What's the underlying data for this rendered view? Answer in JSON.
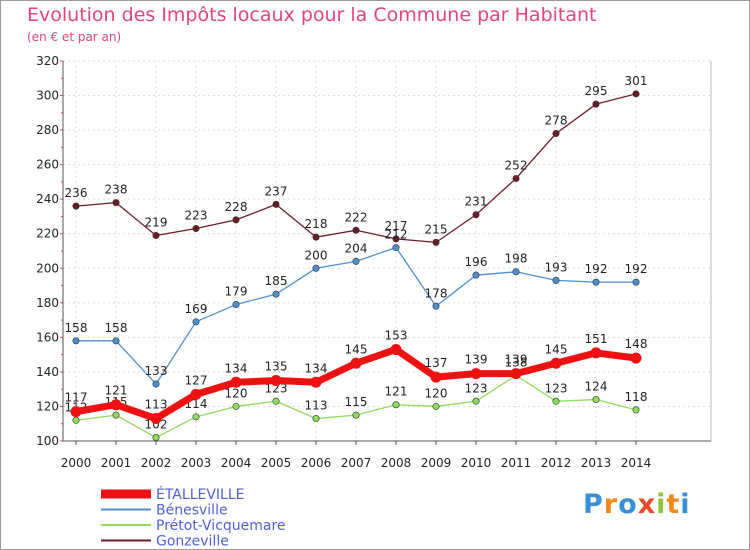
{
  "title": "Evolution des Impôts locaux pour la Commune par Habitant",
  "subtitle": "(en € et par an)",
  "logo": {
    "text": "Proxiti",
    "colors": [
      "#3a8fd6",
      "#f08a1c",
      "#3a8fd6",
      "#e84b2a",
      "#8cc63f",
      "#f08a1c",
      "#3a8fd6"
    ]
  },
  "chart_data": {
    "type": "line",
    "x": [
      "2000",
      "2001",
      "2002",
      "2003",
      "2004",
      "2005",
      "2006",
      "2007",
      "2008",
      "2009",
      "2010",
      "2011",
      "2012",
      "2013",
      "2014"
    ],
    "ylim": [
      100,
      320
    ],
    "yticks": [
      "100",
      "120",
      "140",
      "160",
      "180",
      "200",
      "220",
      "240",
      "260",
      "280",
      "300",
      "320"
    ],
    "xlabel": "",
    "ylabel": "",
    "grid": true,
    "legend": "bottom-left",
    "series": [
      {
        "name": "Gonzeville",
        "color": "#6b1c26",
        "values": [
          236,
          238,
          219,
          223,
          228,
          237,
          218,
          222,
          217,
          215,
          231,
          252,
          278,
          295,
          301
        ],
        "labels": [
          "236",
          "238",
          "219",
          "223",
          "228",
          "237",
          "218",
          "222",
          "217",
          "215",
          "231",
          "252",
          "278",
          "295",
          "301"
        ]
      },
      {
        "name": "Bénesville",
        "color": "#4d8fce",
        "values": [
          158,
          158,
          133,
          169,
          179,
          185,
          200,
          204,
          212,
          178,
          196,
          198,
          193,
          192,
          192
        ],
        "labels": [
          "158",
          "158",
          "133",
          "169",
          "179",
          "185",
          "200",
          "204",
          "212",
          "178",
          "196",
          "198",
          "193",
          "192",
          "192"
        ]
      },
      {
        "name": "Prétot-Vicquemare",
        "color": "#8fdb5a",
        "values": [
          112,
          115,
          102,
          114,
          120,
          123,
          113,
          115,
          121,
          120,
          123,
          138,
          123,
          124,
          118
        ],
        "labels": [
          "112",
          "115",
          "102",
          "114",
          "120",
          "123",
          "113",
          "115",
          "121",
          "120",
          "123",
          "138",
          "123",
          "124",
          "118"
        ]
      },
      {
        "name": "ÉTALLEVILLE",
        "color": "#ee1111",
        "values": [
          117,
          121,
          113,
          127,
          134,
          135,
          134,
          145,
          153,
          137,
          139,
          139,
          145,
          151,
          148
        ],
        "labels": [
          "117",
          "121",
          "113",
          "127",
          "134",
          "135",
          "134",
          "145",
          "153",
          "137",
          "139",
          "139",
          "145",
          "151",
          "148"
        ]
      }
    ],
    "legend_entries": [
      "ÉTALLEVILLE",
      "Bénesville",
      "Prétot-Vicquemare",
      "Gonzeville"
    ]
  }
}
